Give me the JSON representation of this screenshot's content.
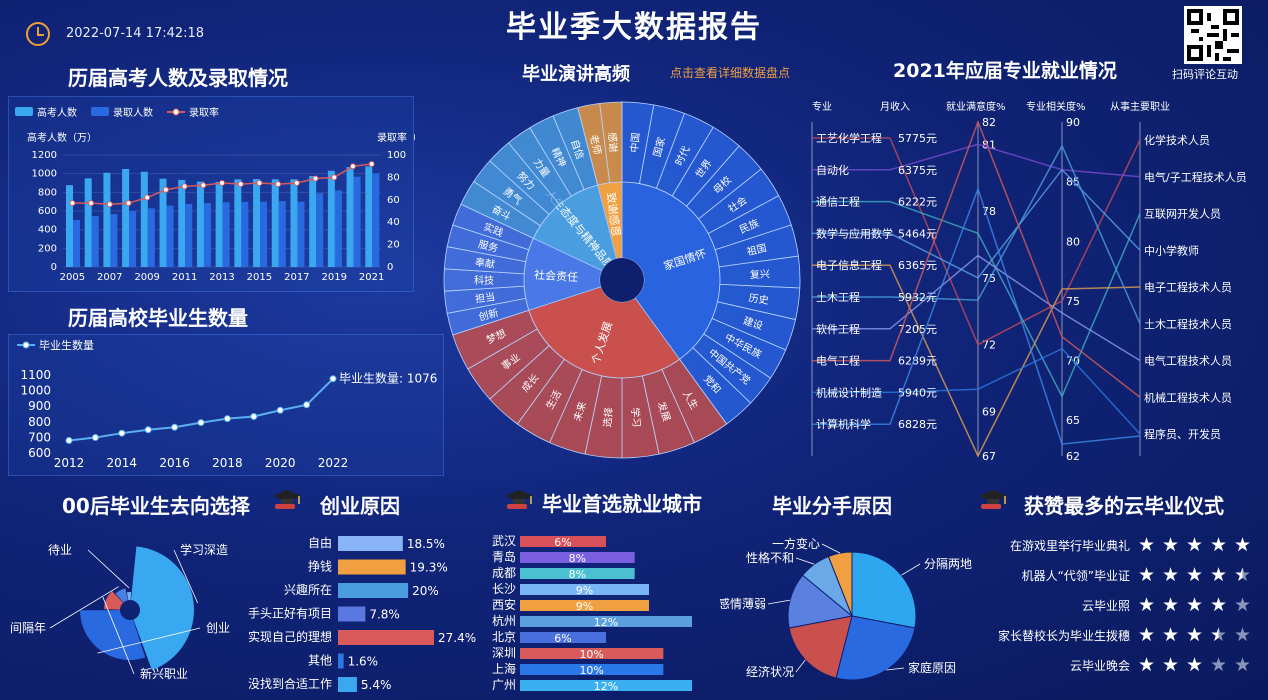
{
  "header": {
    "title": "毕业季大数据报告",
    "datetime": "2022-07-14 17:42:18",
    "qr_label": "扫码评论互动"
  },
  "gaokao": {
    "title": "历届高考人数及录取情况",
    "legend": [
      "高考人数",
      "录取人数",
      "录取率"
    ],
    "ylabel_left": "高考人数（万）",
    "ylabel_right": "录取率（%）",
    "chart_data": {
      "type": "bar",
      "categories": [
        "2005",
        "2006",
        "2007",
        "2008",
        "2009",
        "2010",
        "2011",
        "2012",
        "2013",
        "2014",
        "2015",
        "2016",
        "2017",
        "2018",
        "2019",
        "2020",
        "2021"
      ],
      "series": [
        {
          "name": "高考人数",
          "values": [
            877,
            950,
            1010,
            1050,
            1020,
            946,
            933,
            915,
            912,
            939,
            942,
            940,
            940,
            975,
            1031,
            1071,
            1078
          ]
        },
        {
          "name": "录取人数",
          "values": [
            504,
            546,
            566,
            599,
            629,
            657,
            675,
            685,
            694,
            698,
            700,
            705,
            700,
            791,
            820,
            967,
            1001
          ]
        },
        {
          "name": "录取率",
          "values": [
            57,
            57,
            56,
            57,
            62,
            69,
            72,
            73,
            75,
            74,
            75,
            74,
            75,
            79,
            80,
            90,
            92
          ]
        }
      ],
      "ylim_left": [
        0,
        1200
      ],
      "yticks_left": [
        0,
        200,
        400,
        600,
        800,
        1000,
        1200
      ],
      "ylim_right": [
        0,
        100
      ],
      "yticks_right": [
        0,
        20,
        40,
        60,
        80,
        100
      ],
      "xticks": [
        "2005",
        "2007",
        "2009",
        "2011",
        "2013",
        "2015",
        "2017",
        "2019",
        "2021"
      ]
    }
  },
  "grads": {
    "title": "历届高校毕业生数量",
    "legend": "毕业生数量",
    "annotation": "毕业生数量: 1076",
    "chart_data": {
      "type": "line",
      "x": [
        "2012",
        "2013",
        "2014",
        "2015",
        "2016",
        "2017",
        "2018",
        "2019",
        "2020",
        "2021",
        "2022"
      ],
      "values": [
        680,
        699,
        727,
        749,
        765,
        795,
        820,
        834,
        874,
        909,
        1076
      ],
      "ylim": [
        600,
        1100
      ],
      "yticks": [
        600,
        700,
        800,
        900,
        1000,
        1100
      ],
      "xticks": [
        "2012",
        "2014",
        "2016",
        "2018",
        "2020",
        "2022"
      ]
    }
  },
  "speech": {
    "title": "毕业演讲高频",
    "link": "点击查看详细数据盘点",
    "chart_data": {
      "type": "sunburst",
      "inner": [
        {
          "name": "家国情怀",
          "value": 40,
          "color": "#2a63e0"
        },
        {
          "name": "个人发展",
          "value": 30,
          "color": "#c9504c"
        },
        {
          "name": "社会责任",
          "value": 12,
          "color": "#4a78e6"
        },
        {
          "name": "人生态度与精神品质",
          "value": 14,
          "color": "#4a9ee0"
        },
        {
          "name": "致谢感恩",
          "value": 4,
          "color": "#f0a040"
        }
      ],
      "outer": [
        {
          "name": "中国",
          "parent": 0
        },
        {
          "name": "国家",
          "parent": 0
        },
        {
          "name": "时代",
          "parent": 0
        },
        {
          "name": "世界",
          "parent": 0
        },
        {
          "name": "母校",
          "parent": 0
        },
        {
          "name": "社会",
          "parent": 0
        },
        {
          "name": "民族",
          "parent": 0
        },
        {
          "name": "祖国",
          "parent": 0
        },
        {
          "name": "复兴",
          "parent": 0
        },
        {
          "name": "历史",
          "parent": 0
        },
        {
          "name": "建设",
          "parent": 0
        },
        {
          "name": "中华民族",
          "parent": 0
        },
        {
          "name": "中国共产党",
          "parent": 0
        },
        {
          "name": "党和",
          "parent": 0
        },
        {
          "name": "人生",
          "parent": 1
        },
        {
          "name": "发展",
          "parent": 1
        },
        {
          "name": "学习",
          "parent": 1
        },
        {
          "name": "选择",
          "parent": 1
        },
        {
          "name": "未来",
          "parent": 1
        },
        {
          "name": "生活",
          "parent": 1
        },
        {
          "name": "成长",
          "parent": 1
        },
        {
          "name": "事业",
          "parent": 1
        },
        {
          "name": "梦想",
          "parent": 1
        },
        {
          "name": "创新",
          "parent": 2
        },
        {
          "name": "担当",
          "parent": 2
        },
        {
          "name": "科技",
          "parent": 2
        },
        {
          "name": "奉献",
          "parent": 2
        },
        {
          "name": "服务",
          "parent": 2
        },
        {
          "name": "实践",
          "parent": 2
        },
        {
          "name": "奋斗",
          "parent": 3
        },
        {
          "name": "勇气",
          "parent": 3
        },
        {
          "name": "努力",
          "parent": 3
        },
        {
          "name": "力量",
          "parent": 3
        },
        {
          "name": "精神",
          "parent": 3
        },
        {
          "name": "自信",
          "parent": 3
        },
        {
          "name": "老师",
          "parent": 4
        },
        {
          "name": "感谢",
          "parent": 4
        }
      ]
    }
  },
  "majors": {
    "title": "2021年应届专业就业情况",
    "columns": [
      "专业",
      "月收入",
      "就业满意度%",
      "专业相关度%",
      "从事主要职业"
    ],
    "satisfaction_ticks": [
      "82",
      "81",
      "78",
      "75",
      "72",
      "69",
      "67"
    ],
    "relevance_ticks": [
      "90",
      "85",
      "80",
      "75",
      "70",
      "65",
      "62"
    ],
    "chart_data": {
      "type": "parallel",
      "rows": [
        {
          "major": "工艺化学工程",
          "income": "5775元",
          "satisfaction": 72,
          "relevance": 75,
          "job": "化学技术人员",
          "color": "#c84a5a"
        },
        {
          "major": "自动化",
          "income": "6375元",
          "satisfaction": 81,
          "relevance": 86,
          "job": "电气/子工程技术人员",
          "color": "#7a4ad0"
        },
        {
          "major": "通信工程",
          "income": "6222元",
          "satisfaction": 77,
          "relevance": 67,
          "job": "互联网开发人员",
          "color": "#3fb0c0"
        },
        {
          "major": "数学与应用数学",
          "income": "5464元",
          "satisfaction": 75,
          "relevance": 86,
          "job": "中小学教师",
          "color": "#5aa0e8"
        },
        {
          "major": "电子信息工程",
          "income": "6365元",
          "satisfaction": 67,
          "relevance": 76,
          "job": "电子工程技术人员",
          "color": "#e0a050"
        },
        {
          "major": "土木工程",
          "income": "5932元",
          "satisfaction": 74,
          "relevance": 88,
          "job": "土木工程技术人员",
          "color": "#4aa0d8"
        },
        {
          "major": "软件工程",
          "income": "7205元",
          "satisfaction": 76,
          "relevance": 74,
          "job": "电气工程技术人员",
          "color": "#8a9ae8"
        },
        {
          "major": "电气工程",
          "income": "6289元",
          "satisfaction": 82,
          "relevance": 72,
          "job": "机械工程技术人员",
          "color": "#d85a5a"
        },
        {
          "major": "机械设计制造",
          "income": "5940元",
          "satisfaction": 70,
          "relevance": 71,
          "job": "程序员、开发员",
          "color": "#2a78e0"
        },
        {
          "major": "计算机科学",
          "income": "6828元",
          "satisfaction": 79,
          "relevance": 63,
          "job": "",
          "color": "#3a8ae8"
        }
      ]
    }
  },
  "destination": {
    "title": "00后毕业生去向选择",
    "chart_data": {
      "type": "pie",
      "labels": [
        "学习深造",
        "创业",
        "新兴职业",
        "间隔年",
        "待业"
      ],
      "values": [
        40,
        28,
        12,
        8,
        4
      ],
      "colors": [
        "#3aa8f0",
        "#2a6ae0",
        "#d85a5a",
        "#4a80e0",
        "#7ab0f0"
      ]
    }
  },
  "startup": {
    "title": "创业原因",
    "chart_data": {
      "type": "bar",
      "categories": [
        "自由",
        "挣钱",
        "兴趣所在",
        "手头正好有项目",
        "实现自己的理想",
        "其他",
        "没找到合适工作"
      ],
      "values": [
        18.5,
        19.3,
        20,
        7.8,
        27.4,
        1.6,
        5.4
      ],
      "labels": [
        "18.5%",
        "19.3%",
        "20%",
        "7.8%",
        "27.4%",
        "1.6%",
        "5.4%"
      ],
      "colors": [
        "#8ab4f8",
        "#f0a040",
        "#4a9ee0",
        "#5a78e0",
        "#d85a5a",
        "#2a78e0",
        "#3aa8f0"
      ]
    }
  },
  "cities": {
    "title": "毕业首选就业城市",
    "chart_data": {
      "type": "bar",
      "categories": [
        "武汉",
        "青岛",
        "成都",
        "长沙",
        "西安",
        "杭州",
        "北京",
        "深圳",
        "上海",
        "广州"
      ],
      "values": [
        6,
        8,
        8,
        9,
        9,
        12,
        6,
        10,
        10,
        12
      ],
      "labels": [
        "6%",
        "8%",
        "8%",
        "9%",
        "9%",
        "12%",
        "6%",
        "10%",
        "10%",
        "12%"
      ],
      "colors": [
        "#d8505a",
        "#7a60e0",
        "#4ac0d0",
        "#7ab4f8",
        "#f0a040",
        "#5aa0e0",
        "#4a70e0",
        "#d85a5a",
        "#2a78e8",
        "#3ab0f0"
      ]
    }
  },
  "breakup": {
    "title": "毕业分手原因",
    "chart_data": {
      "type": "pie",
      "labels": [
        "分隔两地",
        "家庭原因",
        "经济状况",
        "感情薄弱",
        "性格不和",
        "一方变心"
      ],
      "values": [
        28,
        26,
        18,
        14,
        8,
        6
      ],
      "colors": [
        "#2ea6f0",
        "#2a6ae0",
        "#c9504c",
        "#5a80e0",
        "#6aa8e8",
        "#f0a040"
      ]
    }
  },
  "ceremony": {
    "title": "获赞最多的云毕业仪式",
    "chart_data": {
      "type": "rating",
      "items": [
        "在游戏里举行毕业典礼",
        "机器人“代领”毕业证",
        "云毕业照",
        "家长替校长为毕业生拨穗",
        "云毕业晚会"
      ],
      "stars": [
        5,
        4.5,
        4,
        3.5,
        3
      ],
      "max": 5
    }
  }
}
